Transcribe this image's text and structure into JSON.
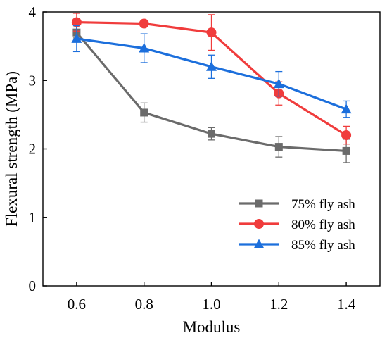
{
  "chart_data": {
    "type": "line",
    "title": "",
    "xlabel": "Modulus",
    "ylabel": "Flexural strength (MPa)",
    "xlim": [
      0.5,
      1.5
    ],
    "ylim": [
      0,
      4
    ],
    "x_ticks": [
      "0.6",
      "0.8",
      "1.0",
      "1.2",
      "1.4"
    ],
    "y_ticks": [
      "0",
      "1",
      "2",
      "3",
      "4"
    ],
    "grid": false,
    "legend_position": "bottom-right",
    "x": [
      0.6,
      0.8,
      1.0,
      1.2,
      1.4
    ],
    "series": [
      {
        "name": "75% fly ash",
        "color": "#6b6b6b",
        "marker": "square",
        "values": [
          3.7,
          2.53,
          2.22,
          2.03,
          1.97
        ],
        "errors": [
          0.08,
          0.14,
          0.09,
          0.15,
          0.17
        ]
      },
      {
        "name": "80% fly ash",
        "color": "#f03c3c",
        "marker": "circle",
        "values": [
          3.85,
          3.83,
          3.7,
          2.81,
          2.2
        ],
        "errors": [
          0.13,
          0.03,
          0.26,
          0.17,
          0.13
        ]
      },
      {
        "name": "85% fly ash",
        "color": "#1c6fdc",
        "marker": "triangle",
        "values": [
          3.61,
          3.47,
          3.2,
          2.95,
          2.58
        ],
        "errors": [
          0.19,
          0.21,
          0.17,
          0.18,
          0.12
        ]
      }
    ]
  }
}
